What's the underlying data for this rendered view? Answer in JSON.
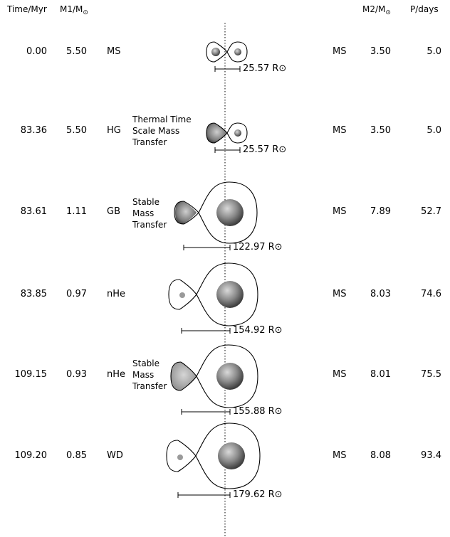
{
  "headers": {
    "time": "Time/Myr",
    "m1": "M1/M",
    "m2": "M2/M",
    "period": "P/days",
    "sun_symbol": "⊙"
  },
  "radius_unit": "R⊙",
  "rows": [
    {
      "time": "0.00",
      "m1": "5.50",
      "type1": "MS",
      "type2": "MS",
      "m2": "3.50",
      "period": "5.0",
      "separation": "25.57",
      "note": []
    },
    {
      "time": "83.36",
      "m1": "5.50",
      "type1": "HG",
      "type2": "MS",
      "m2": "3.50",
      "period": "5.0",
      "separation": "25.57",
      "note": [
        "Thermal Time",
        "Scale Mass",
        "Transfer"
      ]
    },
    {
      "time": "83.61",
      "m1": "1.11",
      "type1": "GB",
      "type2": "MS",
      "m2": "7.89",
      "period": "52.7",
      "separation": "122.97",
      "note": [
        "Stable",
        "Mass",
        "Transfer"
      ]
    },
    {
      "time": "83.85",
      "m1": "0.97",
      "type1": "nHe",
      "type2": "MS",
      "m2": "8.03",
      "period": "74.6",
      "separation": "154.92",
      "note": []
    },
    {
      "time": "109.15",
      "m1": "0.93",
      "type1": "nHe",
      "type2": "MS",
      "m2": "8.01",
      "period": "75.5",
      "separation": "155.88",
      "note": [
        "Stable",
        "Mass",
        "Transfer"
      ]
    },
    {
      "time": "109.20",
      "m1": "0.85",
      "type1": "WD",
      "type2": "MS",
      "m2": "8.08",
      "period": "93.4",
      "separation": "179.62",
      "note": []
    }
  ]
}
